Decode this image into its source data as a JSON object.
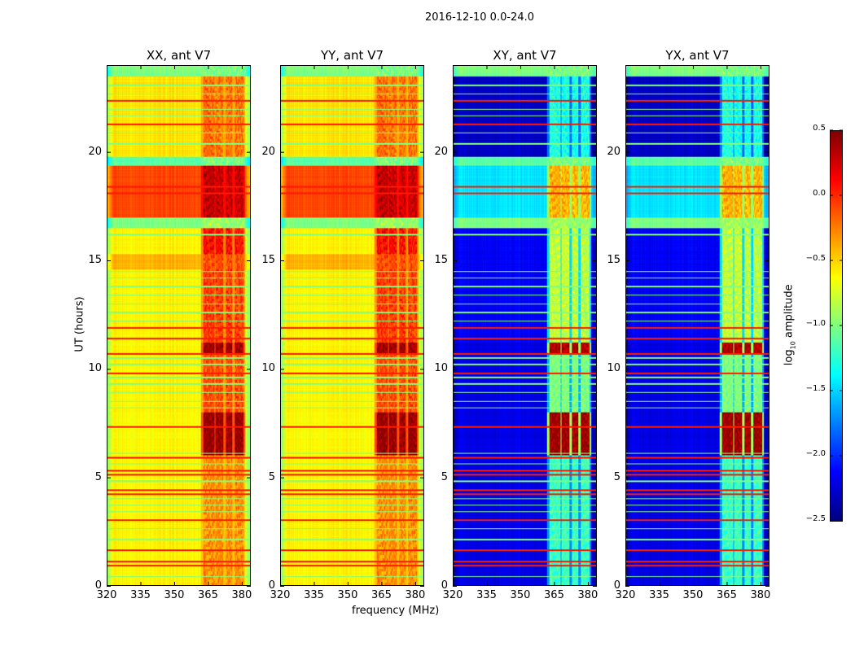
{
  "chart_data": {
    "type": "heatmap",
    "title": "2016-12-10 0.0-24.0",
    "xlabel": "frequency (MHz)",
    "ylabel": "UT (hours)",
    "xlim": [
      320,
      384
    ],
    "ylim": [
      0,
      24
    ],
    "xticks": [
      320,
      335,
      350,
      365,
      380
    ],
    "yticks": [
      0,
      5,
      10,
      15,
      20
    ],
    "colorbar": {
      "label_main": "log",
      "label_sub": "10",
      "label_rest": " amplitude",
      "range": [
        -2.5,
        0.5
      ],
      "ticks": [
        "0.5",
        "0.0",
        "−0.5",
        "−1.0",
        "−1.5",
        "−2.0",
        "−2.5"
      ],
      "tick_values": [
        0.5,
        0.0,
        -0.5,
        -1.0,
        -1.5,
        -2.0,
        -2.5
      ],
      "colormap": "jet"
    },
    "panels": [
      {
        "title": "XX, ant V7",
        "kind": "co"
      },
      {
        "title": "YY, ant V7",
        "kind": "co"
      },
      {
        "title": "XY, ant V7",
        "kind": "cross"
      },
      {
        "title": "YX, ant V7",
        "kind": "cross"
      }
    ],
    "segments": {
      "co": [
        {
          "t0": 0,
          "t1": 6,
          "base": -0.6,
          "rfi": -0.3
        },
        {
          "t0": 6,
          "t1": 8,
          "base": -0.62,
          "rfi": 0.42
        },
        {
          "t0": 8,
          "t1": 10.7,
          "base": -0.6,
          "rfi": -0.1
        },
        {
          "t0": 10.7,
          "t1": 11.2,
          "base": -0.6,
          "rfi": 0.4
        },
        {
          "t0": 11.2,
          "t1": 14.6,
          "base": -0.6,
          "rfi": -0.05
        },
        {
          "t0": 14.6,
          "t1": 15.3,
          "base": -0.4,
          "rfi": -0.1
        },
        {
          "t0": 15.3,
          "t1": 16.5,
          "base": -0.6,
          "rfi": 0.1
        },
        {
          "t0": 16.5,
          "t1": 17.0,
          "base": -1.0,
          "rfi": -0.9
        },
        {
          "t0": 17.0,
          "t1": 19.4,
          "base": -0.08,
          "rfi": 0.3
        },
        {
          "t0": 19.4,
          "t1": 19.8,
          "base": -1.1,
          "rfi": -1.0
        },
        {
          "t0": 19.8,
          "t1": 23.5,
          "base": -0.55,
          "rfi": -0.2
        },
        {
          "t0": 23.5,
          "t1": 24,
          "base": -1.0,
          "rfi": -1.0
        }
      ],
      "cross": [
        {
          "t0": 0,
          "t1": 6,
          "base": -2.2,
          "rfi": -1.2
        },
        {
          "t0": 6,
          "t1": 8,
          "base": -2.2,
          "rfi": 0.4
        },
        {
          "t0": 8,
          "t1": 10.7,
          "base": -2.2,
          "rfi": -1.0
        },
        {
          "t0": 10.7,
          "t1": 11.2,
          "base": -2.2,
          "rfi": 0.35
        },
        {
          "t0": 11.2,
          "t1": 16.5,
          "base": -2.15,
          "rfi": -0.8
        },
        {
          "t0": 16.5,
          "t1": 17.0,
          "base": -1.0,
          "rfi": -0.9
        },
        {
          "t0": 17.0,
          "t1": 19.4,
          "base": -1.45,
          "rfi": -0.4
        },
        {
          "t0": 19.4,
          "t1": 19.8,
          "base": -1.1,
          "rfi": -1.0
        },
        {
          "t0": 19.8,
          "t1": 23.5,
          "base": -2.3,
          "rfi": -1.3
        },
        {
          "t0": 23.5,
          "t1": 24,
          "base": -1.0,
          "rfi": -1.0
        }
      ]
    },
    "rfi_bands_mhz": [
      [
        363,
        368
      ],
      [
        368.5,
        372
      ],
      [
        373,
        376
      ],
      [
        377,
        381
      ]
    ],
    "flag_lines": {
      "red": {
        "value": 0.05,
        "hours": [
          0.9,
          1.1,
          1.6,
          3.0,
          4.2,
          4.4,
          5.1,
          5.3,
          5.9,
          7.3,
          9.8,
          10.7,
          11.4,
          11.9,
          18.1,
          18.4,
          21.3,
          22.4
        ]
      },
      "green": {
        "value": -1.0,
        "hours": [
          0.4,
          2.1,
          2.6,
          3.4,
          3.7,
          4.0,
          4.8,
          5.6,
          6.1,
          8.2,
          8.5,
          8.9,
          9.3,
          9.6,
          10.2,
          10.5,
          12.2,
          12.6,
          13.0,
          13.4,
          13.8,
          14.2,
          14.5,
          16.2,
          20.4,
          20.9,
          21.7,
          22.0,
          22.7,
          23.1
        ]
      }
    }
  }
}
